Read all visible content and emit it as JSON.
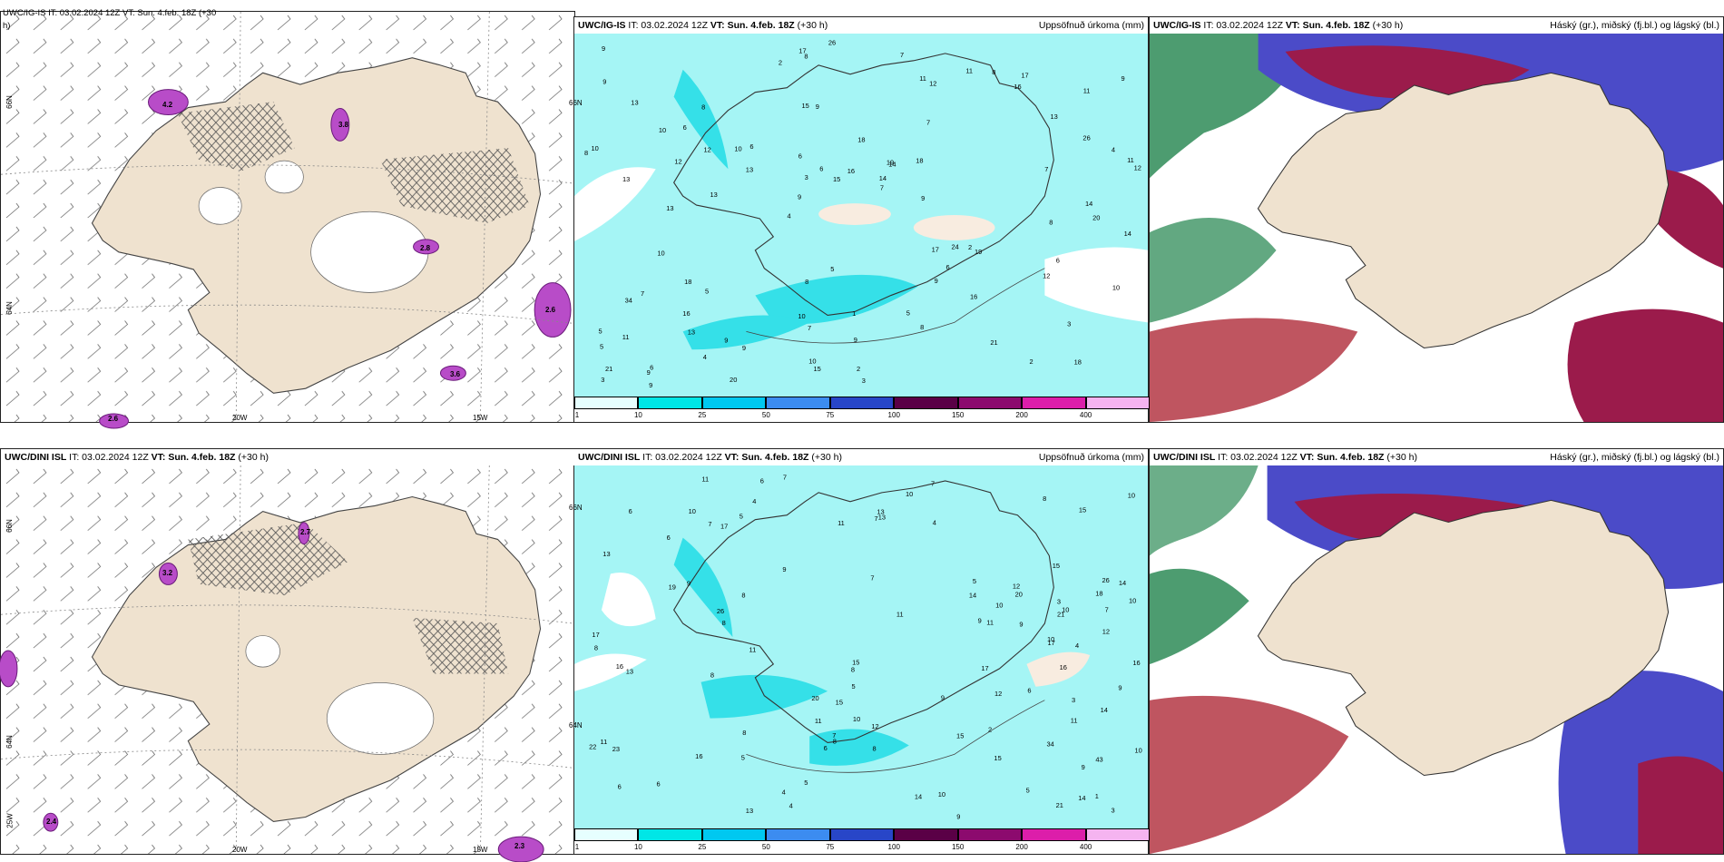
{
  "row1": {
    "p1": {
      "header_cut": "UWC/IG-IS IT: 03.02.2024 12Z VT: Sun. 4.feb. 18Z (+30",
      "header_cut2": "h)",
      "lat_labels": [
        "66N",
        "64N"
      ],
      "lon_labels": [
        "20W",
        "15W"
      ],
      "values": [
        "4.2",
        "3.8",
        "2.8",
        "2.6",
        "3.6",
        "2.6"
      ]
    },
    "p2": {
      "model": "UWC/IG-IS",
      "it": "IT: 03.02.2024 12Z",
      "vt_label": "VT:",
      "vt": "Sun. 4.feb. 18Z",
      "lead": "(+30 h)",
      "right": "Uppsöfnuð úrkoma (mm)",
      "lat_labels": [
        "66N"
      ],
      "numbers": [
        "18",
        "13",
        "11",
        "4",
        "7",
        "6",
        "15",
        "18",
        "7",
        "6",
        "5",
        "13",
        "9",
        "14",
        "19",
        "13",
        "8",
        "12",
        "17",
        "26",
        "9",
        "10",
        "3",
        "8",
        "11",
        "5",
        "2",
        "3",
        "2",
        "3",
        "10",
        "12",
        "9",
        "4",
        "4",
        "14",
        "21",
        "7",
        "7",
        "34",
        "13",
        "9",
        "6",
        "8",
        "16",
        "9",
        "3",
        "1",
        "17",
        "26",
        "13",
        "10",
        "6",
        "8",
        "9",
        "7",
        "2",
        "6",
        "10",
        "8",
        "9",
        "24",
        "12",
        "5",
        "9",
        "10",
        "14",
        "6",
        "9",
        "16",
        "11",
        "9",
        "6",
        "10",
        "7",
        "5",
        "21",
        "2",
        "5",
        "17",
        "20",
        "18",
        "16",
        "15",
        "12",
        "8",
        "15",
        "11",
        "12",
        "13",
        "20",
        "14",
        "11",
        "10",
        "18",
        "9",
        "19",
        "16",
        "13",
        "8",
        "9"
      ],
      "colorbar": {
        "ticks": [
          "1",
          "10",
          "25",
          "50",
          "75",
          "100",
          "150",
          "200",
          "400"
        ],
        "colors": [
          "#e6ffff",
          "#00e6e6",
          "#00c8f0",
          "#3c8cf0",
          "#2846c8",
          "#5a0046",
          "#8c0a6e",
          "#dc1eaa",
          "#f5b4f0"
        ]
      }
    },
    "p3": {
      "model": "UWC/IG-IS",
      "it": "IT: 03.02.2024 12Z",
      "vt_label": "VT:",
      "vt": "Sun. 4.feb. 18Z",
      "lead": "(+30 h)",
      "right": "Háský (gr.), miðský (fj.bl.) og lágský (bl.)"
    }
  },
  "row2": {
    "p1": {
      "model": "UWC/DINI ISL",
      "it": "IT: 03.02.2024 12Z",
      "vt_label": "VT:",
      "vt": "Sun. 4.feb. 18Z",
      "lead": "(+30 h)",
      "lat_labels": [
        "66N",
        "64N"
      ],
      "lon_labels": [
        "25W",
        "20W",
        "15W"
      ],
      "values": [
        "3.2",
        "2.4",
        "2.3",
        "2.7"
      ]
    },
    "p2": {
      "model": "UWC/DINI ISL",
      "it": "IT: 03.02.2024 12Z",
      "vt_label": "VT:",
      "vt": "Sun. 4.feb. 18Z",
      "lead": "(+30 h)",
      "right": "Uppsöfnuð úrkoma (mm)",
      "lat_labels": [
        "66N",
        "64N"
      ],
      "numbers": [
        "34",
        "26",
        "43",
        "7",
        "6",
        "4",
        "3",
        "5",
        "15",
        "9",
        "7",
        "13",
        "10",
        "4",
        "23",
        "6",
        "9",
        "5",
        "8",
        "10",
        "16",
        "13",
        "14",
        "9",
        "4",
        "6",
        "10",
        "4",
        "5",
        "10",
        "8",
        "15",
        "13",
        "8",
        "3",
        "5",
        "11",
        "11",
        "21",
        "11",
        "6",
        "9",
        "7",
        "8",
        "14",
        "12",
        "6",
        "7",
        "8",
        "20",
        "16",
        "5",
        "13",
        "10",
        "15",
        "17",
        "6",
        "10",
        "9",
        "13",
        "7",
        "2",
        "3",
        "8",
        "7",
        "1",
        "22",
        "15",
        "12",
        "19",
        "15",
        "17",
        "8",
        "9",
        "7",
        "10",
        "11",
        "12",
        "16",
        "11",
        "10",
        "9",
        "10",
        "4",
        "5",
        "21",
        "8",
        "10",
        "8",
        "9",
        "11",
        "26",
        "17",
        "14",
        "11",
        "17",
        "11",
        "14",
        "16",
        "6",
        "20",
        "12",
        "15",
        "14",
        "18"
      ],
      "colorbar": {
        "ticks": [
          "1",
          "10",
          "25",
          "50",
          "75",
          "100",
          "150",
          "200",
          "400"
        ],
        "colors": [
          "#e6ffff",
          "#00e6e6",
          "#00c8f0",
          "#3c8cf0",
          "#2846c8",
          "#5a0046",
          "#8c0a6e",
          "#dc1eaa",
          "#f5b4f0"
        ]
      }
    },
    "p3": {
      "model": "UWC/DINI ISL",
      "it": "IT: 03.02.2024 12Z",
      "vt_label": "VT:",
      "vt": "Sun. 4.feb. 18Z",
      "lead": "(+30 h)",
      "right": "Háský (gr.), miðský (fj.bl.) og lágský (bl.)"
    }
  },
  "colors": {
    "land": "#efe2cf",
    "cyan": "#a5f5f5",
    "cyan_dark": "#35e0e8",
    "high_cloud": "#2e8b57",
    "mid_cloud": "#4b4bc8",
    "low_cloud": "#9b1b4b",
    "magenta": "#b84cc8"
  }
}
